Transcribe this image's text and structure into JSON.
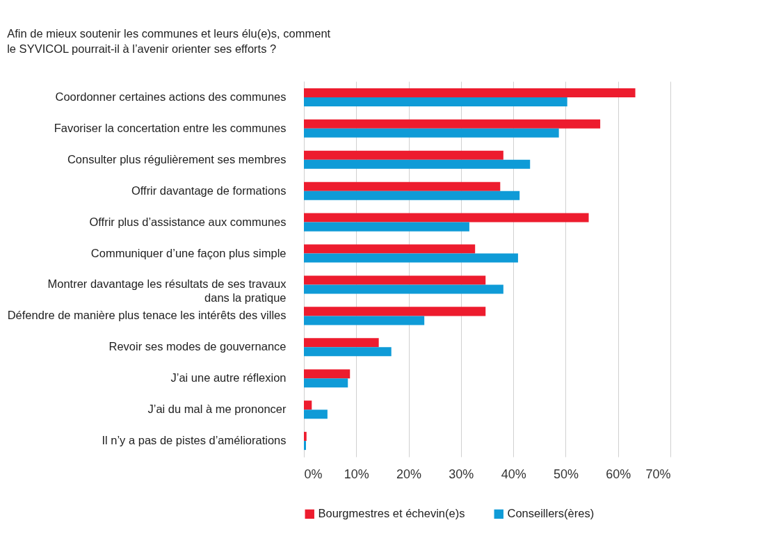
{
  "chart_data": {
    "type": "bar",
    "orientation": "horizontal",
    "title": "Afin de mieux soutenir les communes et leurs élu(e)s, comment\nle SYVICOL pourrait-il à l’avenir orienter ses efforts ?",
    "categories": [
      "Coordonner certaines actions des communes",
      "Favoriser la concertation entre les communes",
      "Consulter plus régulièrement ses membres",
      "Offrir davantage de formations",
      "Offrir plus d’assistance aux communes",
      "Communiquer d’une façon plus simple",
      "Montrer davantage les résultats de ses travaux\ndans la pratique",
      "Défendre de manière plus tenace les intérêts des villes",
      "Revoir ses modes de gouvernance",
      "J’ai une autre réflexion",
      "J’ai du mal à me prononcer",
      "Il n’y a pas de pistes d’améliorations"
    ],
    "series": [
      {
        "name": "Bourgmestres et échevin(e)s",
        "color": "#ed1c2e",
        "values": [
          63.3,
          56.6,
          38.1,
          37.5,
          54.4,
          32.7,
          34.7,
          34.7,
          14.3,
          8.8,
          1.5,
          0.5
        ]
      },
      {
        "name": "Conseillers(ères)",
        "color": "#0f9bd7",
        "values": [
          50.3,
          48.7,
          43.2,
          41.2,
          31.6,
          40.9,
          38.1,
          23.0,
          16.7,
          8.4,
          4.5,
          0.4
        ]
      }
    ],
    "xlim": [
      0,
      70
    ],
    "xticks": [
      {
        "value": 0,
        "label": "0%"
      },
      {
        "value": 10,
        "label": "10%"
      },
      {
        "value": 20,
        "label": "20%"
      },
      {
        "value": 30,
        "label": "30%"
      },
      {
        "value": 40,
        "label": "40%"
      },
      {
        "value": 50,
        "label": "50%"
      },
      {
        "value": 60,
        "label": "60%"
      },
      {
        "value": 70,
        "label": "70%"
      }
    ],
    "grid": "x",
    "legend": "bottom"
  }
}
